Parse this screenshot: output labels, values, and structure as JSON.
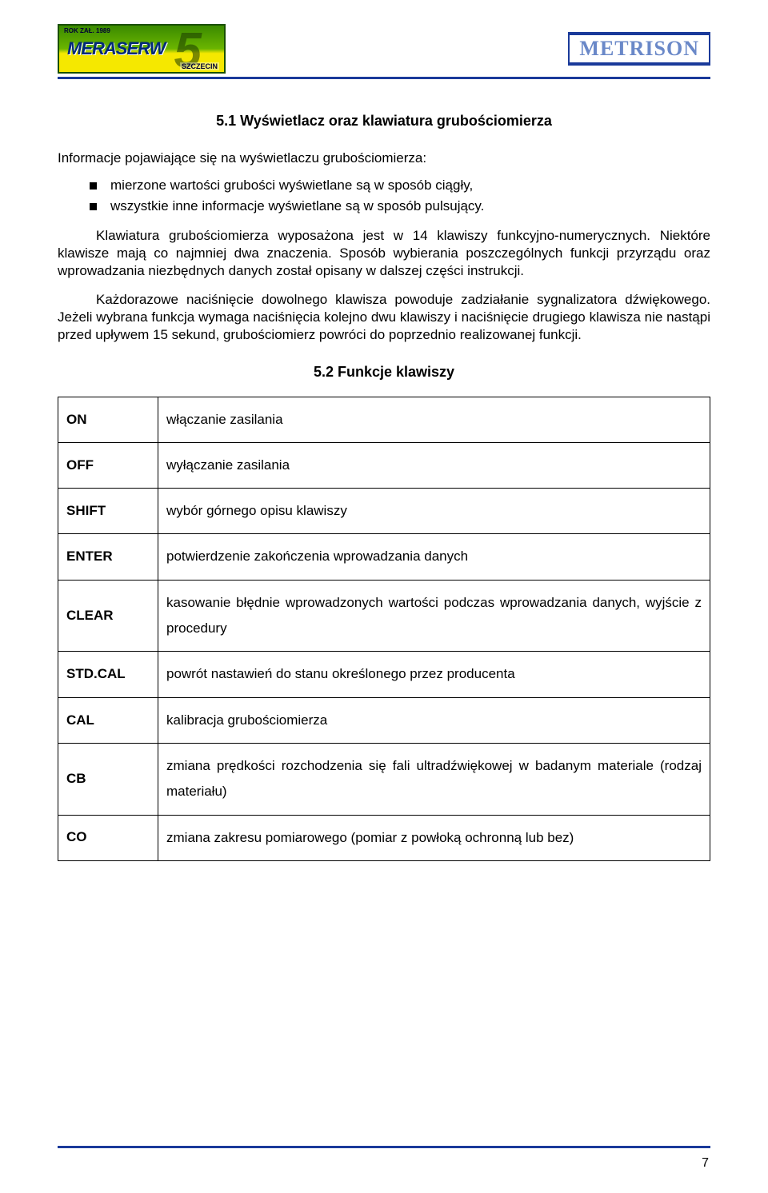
{
  "header": {
    "logo_left_text": "MERASERW",
    "logo_left_small": "ROK ZAŁ. 1989",
    "logo_left_city": "SZCZECIN",
    "logo_right_text": "METRISON"
  },
  "section_5_1_title": "5.1   Wyświetlacz oraz klawiatura grubościomierza",
  "intro": "Informacje pojawiające się na wyświetlaczu grubościomierza:",
  "bullets": [
    "mierzone wartości grubości wyświetlane są w sposób ciągły,",
    "wszystkie inne informacje wyświetlane są w sposób pulsujący."
  ],
  "para1": "Klawiatura grubościomierza wyposażona jest w 14 klawiszy funkcyjno-numerycznych. Niektóre klawisze mają co najmniej dwa znaczenia. Sposób wybierania poszczególnych funkcji przyrządu oraz wprowadzania niezbędnych danych został opisany w dalszej części instrukcji.",
  "para2": "Każdorazowe naciśnięcie dowolnego klawisza powoduje zadziałanie sygnalizatora dźwiękowego. Jeżeli wybrana funkcja wymaga naciśnięcia kolejno dwu klawiszy i naciśnięcie drugiego klawisza nie nastąpi przed upływem 15 sekund, grubościomierz powróci do poprzednio realizowanej funkcji.",
  "section_5_2_title": "5.2   Funkcje klawiszy",
  "functions": [
    {
      "key": "ON",
      "desc": "włączanie zasilania"
    },
    {
      "key": "OFF",
      "desc": "wyłączanie zasilania"
    },
    {
      "key": "SHIFT",
      "desc": "wybór górnego opisu klawiszy"
    },
    {
      "key": "ENTER",
      "desc": "potwierdzenie zakończenia wprowadzania danych"
    },
    {
      "key": "CLEAR",
      "desc": "kasowanie błędnie wprowadzonych wartości podczas wprowadzania danych, wyjście z procedury"
    },
    {
      "key": "STD.CAL",
      "desc": "powrót nastawień do stanu określonego przez producenta"
    },
    {
      "key": "CAL",
      "desc": "kalibracja grubościomierza"
    },
    {
      "key": "CB",
      "desc": "zmiana prędkości rozchodzenia się fali ultradźwiękowej w badanym materiale (rodzaj materiału)"
    },
    {
      "key": "CO",
      "desc": "zmiana zakresu pomiarowego (pomiar z powłoką ochronną lub bez)"
    }
  ],
  "page_number": "7"
}
